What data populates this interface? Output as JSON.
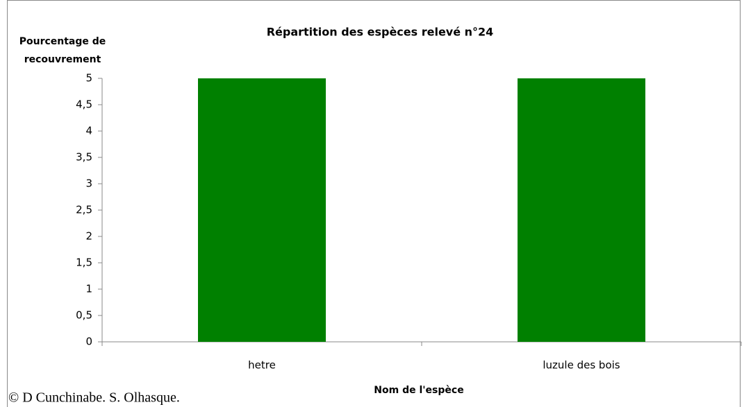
{
  "chart_data": {
    "type": "bar",
    "title": "Répartition des espèces relevé n°24",
    "y_label": [
      "Pourcentage de",
      "recouvrement"
    ],
    "x_label": "Nom de l'espèce",
    "categories": [
      "hetre",
      "luzule des bois"
    ],
    "values": [
      5,
      5
    ],
    "color": "#008000",
    "ylim": [
      0,
      5
    ],
    "yticks": [
      0,
      {
        "value": 0.5,
        "label": "0,5"
      },
      1,
      {
        "value": 1.5,
        "label": "1,5"
      },
      2,
      {
        "value": 2.5,
        "label": "2,5"
      },
      3,
      {
        "value": 3.5,
        "label": "3,5"
      },
      4,
      {
        "value": 4.5,
        "label": "4,5"
      },
      5
    ],
    "grid": false,
    "copyright": "© D Cunchinabe. S. Olhasque."
  }
}
